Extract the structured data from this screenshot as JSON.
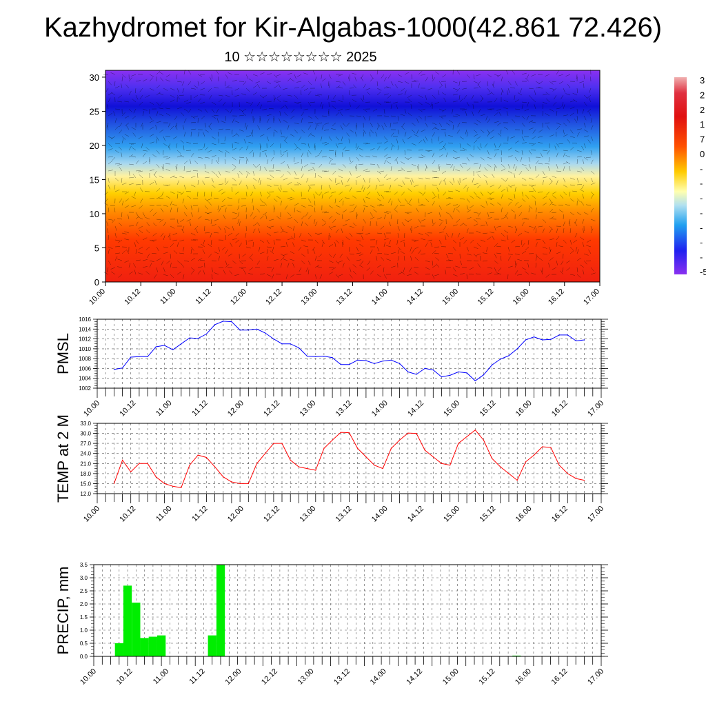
{
  "title": "Kazhydromet for Kir-Algabas-1000(42.861 72.426)",
  "subtitle": "10 ☆☆☆☆☆☆☆☆ 2025",
  "chart_data": [
    {
      "type": "heatmap",
      "title": "",
      "xlabel": "",
      "ylabel": "",
      "x_ticks": [
        "10.00",
        "10.12",
        "11.00",
        "11.12",
        "12.00",
        "12.12",
        "13.00",
        "13.12",
        "14.00",
        "14.12",
        "15.00",
        "15.12",
        "16.00",
        "16.12",
        "17.00"
      ],
      "y_ticks": [
        0,
        5,
        10,
        15,
        20,
        25,
        30
      ],
      "ylim": [
        0,
        31
      ],
      "colorbar_labels": [
        "3",
        "2",
        "2",
        "1",
        "7",
        "0",
        "-",
        "-",
        "-",
        "-",
        "-",
        "-",
        "-",
        "-5"
      ],
      "overlay": "wind barbs"
    },
    {
      "type": "line",
      "ylabel": "PMSL",
      "color": "#0000ff",
      "x_ticks": [
        "10.00",
        "10.12",
        "11.00",
        "11.12",
        "12.00",
        "12.12",
        "13.00",
        "13.12",
        "14.00",
        "14.12",
        "15.00",
        "15.12",
        "16.00",
        "16.12",
        "17.00"
      ],
      "y_ticks": [
        1002,
        1004,
        1006,
        1008,
        1010,
        1012,
        1014,
        1016
      ],
      "ylim": [
        1002,
        1016
      ],
      "values": [
        1005.8,
        1006.1,
        1008.3,
        1008.4,
        1008.4,
        1010.4,
        1010.7,
        1009.8,
        1011.0,
        1012.2,
        1012.1,
        1013.0,
        1014.9,
        1015.6,
        1015.5,
        1013.8,
        1013.8,
        1014.0,
        1013.2,
        1012.0,
        1011.0,
        1011.0,
        1010.2,
        1008.5,
        1008.4,
        1008.5,
        1008.2,
        1006.8,
        1006.8,
        1007.7,
        1007.6,
        1007.0,
        1007.5,
        1007.7,
        1007.0,
        1005.3,
        1004.8,
        1006.0,
        1005.7,
        1004.3,
        1004.6,
        1005.3,
        1005.1,
        1003.5,
        1004.7,
        1006.7,
        1007.9,
        1008.6,
        1010.0,
        1011.8,
        1012.4,
        1011.8,
        1011.9,
        1012.8,
        1012.8,
        1011.6,
        1011.8
      ],
      "grid": true
    },
    {
      "type": "line",
      "ylabel": "TEMP at 2 M",
      "color": "#ff0000",
      "x_ticks": [
        "10.00",
        "10.12",
        "11.00",
        "11.12",
        "12.00",
        "12.12",
        "13.00",
        "13.12",
        "14.00",
        "14.12",
        "15.00",
        "15.12",
        "16.00",
        "16.12",
        "17.00"
      ],
      "y_ticks": [
        "12.0",
        "15.0",
        "18.0",
        "21.0",
        "24.0",
        "27.0",
        "30.0",
        "33.0"
      ],
      "ylim": [
        12,
        33
      ],
      "values": [
        15.0,
        22.0,
        18.5,
        21.0,
        21.0,
        17.0,
        15.0,
        14.2,
        13.8,
        20.5,
        23.5,
        22.8,
        20.0,
        17.0,
        15.5,
        15.0,
        15.0,
        21.0,
        24.0,
        27.0,
        27.0,
        22.0,
        20.0,
        19.5,
        19.0,
        25.5,
        28.0,
        30.3,
        30.2,
        25.5,
        23.0,
        20.5,
        19.5,
        25.5,
        28.0,
        30.1,
        30.0,
        25.0,
        23.0,
        21.0,
        20.5,
        27.0,
        29.0,
        31.0,
        28.0,
        22.5,
        20.0,
        18.0,
        16.0,
        21.5,
        23.5,
        26.0,
        25.8,
        20.5,
        18.0,
        16.5,
        16.0
      ],
      "grid": true
    },
    {
      "type": "bar",
      "ylabel": "PRECIP, mm",
      "color": "#00ee00",
      "x_ticks": [
        "10.00",
        "10.12",
        "11.00",
        "11.12",
        "12.00",
        "12.12",
        "13.00",
        "13.12",
        "14.00",
        "14.12",
        "15.00",
        "15.12",
        "16.00",
        "16.12",
        "17.00"
      ],
      "y_ticks": [
        "0.0",
        "0.5",
        "1.0",
        "1.5",
        "2.0",
        "2.5",
        "3.0",
        "3.5"
      ],
      "ylim": [
        0,
        3.5
      ],
      "values": [
        0.5,
        2.7,
        2.05,
        0.7,
        0.75,
        0.8,
        0,
        0,
        0,
        0,
        0,
        0.8,
        3.5,
        0,
        0,
        0,
        0,
        0,
        0,
        0,
        0,
        0,
        0,
        0,
        0,
        0,
        0,
        0,
        0,
        0,
        0,
        0,
        0,
        0,
        0,
        0,
        0,
        0,
        0,
        0,
        0,
        0,
        0,
        0,
        0,
        0,
        0,
        0.03,
        0,
        0,
        0,
        0,
        0,
        0,
        0,
        0,
        0
      ],
      "grid": true
    }
  ]
}
